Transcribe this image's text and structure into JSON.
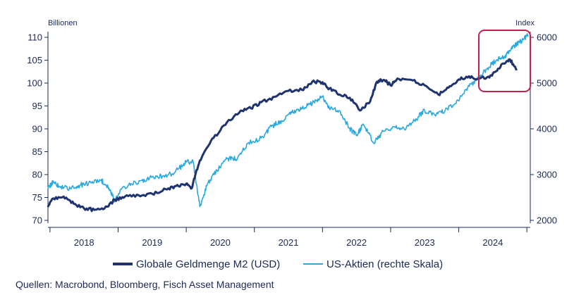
{
  "chart_data": {
    "type": "line",
    "left_axis_unit": "Billionen",
    "right_axis_unit": "Index",
    "ylim_left": [
      70,
      110
    ],
    "yticks_left": [
      "70",
      "75",
      "80",
      "85",
      "90",
      "95",
      "100",
      "105",
      "110"
    ],
    "ylim_right": [
      2000,
      6000
    ],
    "yticks_right": [
      "2000",
      "3000",
      "4000",
      "5000",
      "6000"
    ],
    "x_categories": [
      "2018",
      "2019",
      "2020",
      "2021",
      "2022",
      "2023",
      "2024"
    ],
    "grid": false,
    "legend_position": "bottom",
    "series": [
      {
        "name": "Globale Geldmenge M2 (USD)",
        "axis": "left",
        "color": "#1f3370",
        "x": [
          2017.97,
          2018.05,
          2018.2,
          2018.35,
          2018.5,
          2018.65,
          2018.8,
          2018.95,
          2019.1,
          2019.3,
          2019.5,
          2019.7,
          2019.85,
          2020.0,
          2020.08,
          2020.15,
          2020.25,
          2020.4,
          2020.6,
          2020.8,
          2020.95,
          2021.1,
          2021.3,
          2021.5,
          2021.7,
          2021.85,
          2022.0,
          2022.1,
          2022.25,
          2022.4,
          2022.55,
          2022.7,
          2022.8,
          2022.9,
          2023.0,
          2023.1,
          2023.3,
          2023.5,
          2023.7,
          2023.85,
          2024.0,
          2024.15,
          2024.3,
          2024.45,
          2024.55,
          2024.65,
          2024.75,
          2024.85
        ],
        "y": [
          72.9,
          74.8,
          75.2,
          73.6,
          72.6,
          72.3,
          72.6,
          74.5,
          75.2,
          75.5,
          75.8,
          76.8,
          77.5,
          78.0,
          77.0,
          81.0,
          84.5,
          88.0,
          91.5,
          94.0,
          94.5,
          95.8,
          97.0,
          98.3,
          98.5,
          100.3,
          100.2,
          98.8,
          97.5,
          96.8,
          94.0,
          96.0,
          100.3,
          100.7,
          99.5,
          101.0,
          100.7,
          99.5,
          97.5,
          99.0,
          100.8,
          101.5,
          101.0,
          101.2,
          102.6,
          104.3,
          105.2,
          102.8
        ]
      },
      {
        "name": "US-Aktien (rechte Skala)",
        "axis": "right",
        "color": "#2aa8e0",
        "x": [
          2017.97,
          2018.05,
          2018.15,
          2018.3,
          2018.45,
          2018.6,
          2018.75,
          2018.85,
          2018.95,
          2019.05,
          2019.2,
          2019.35,
          2019.5,
          2019.65,
          2019.8,
          2019.95,
          2020.0,
          2020.1,
          2020.2,
          2020.3,
          2020.45,
          2020.6,
          2020.75,
          2020.9,
          2021.1,
          2021.25,
          2021.4,
          2021.55,
          2021.7,
          2021.85,
          2022.0,
          2022.1,
          2022.25,
          2022.4,
          2022.5,
          2022.6,
          2022.75,
          2022.9,
          2023.05,
          2023.2,
          2023.35,
          2023.5,
          2023.65,
          2023.8,
          2023.95,
          2024.1,
          2024.25,
          2024.4,
          2024.55,
          2024.65,
          2024.75,
          2024.85,
          2024.95,
          2025.02
        ],
        "y": [
          2690,
          2850,
          2720,
          2700,
          2770,
          2820,
          2880,
          2750,
          2430,
          2690,
          2800,
          2870,
          2950,
          2960,
          3020,
          3200,
          3270,
          3290,
          2300,
          2750,
          3100,
          3350,
          3350,
          3680,
          3800,
          4050,
          4180,
          4350,
          4450,
          4550,
          4700,
          4450,
          4400,
          4000,
          3850,
          4100,
          3700,
          3950,
          4050,
          4000,
          4180,
          4400,
          4300,
          4400,
          4550,
          4850,
          5050,
          5300,
          5500,
          5550,
          5700,
          5850,
          5950,
          6050
        ]
      }
    ],
    "annotation": "highlight-box-2024"
  },
  "legend": {
    "m2": "Globale Geldmenge M2 (USD)",
    "stocks": "US-Aktien (rechte Skala)"
  },
  "source": "Quellen: Macrobond, Bloomberg, Fisch Asset Management",
  "colors": {
    "m2": "#1f3370",
    "stocks": "#2aa8e0",
    "highlight": "#c4204e",
    "axis": "#1b2a55"
  }
}
